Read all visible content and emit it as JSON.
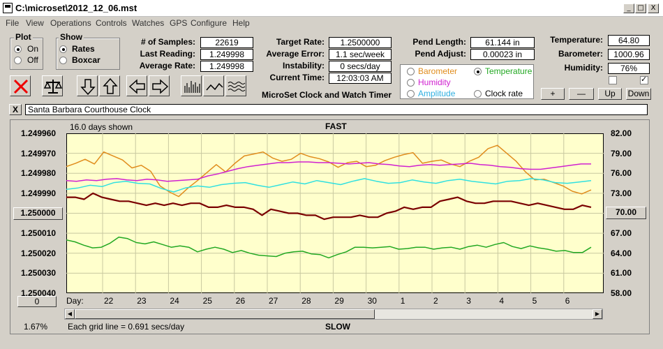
{
  "window": {
    "title": "C:\\microset\\2012_12_06.mst",
    "min": "_",
    "max": "□",
    "close": "X"
  },
  "menu": [
    "File",
    "View",
    "Operations",
    "Controls",
    "Watches",
    "GPS",
    "Configure",
    "Help"
  ],
  "plot_group": {
    "title": "Plot",
    "on": "On",
    "off": "Off",
    "selected": "On"
  },
  "show_group": {
    "title": "Show",
    "rates": "Rates",
    "boxcar": "Boxcar",
    "selected": "Rates"
  },
  "stats": {
    "samples_label": "# of Samples:",
    "samples": "22619",
    "last_reading_label": "Last Reading:",
    "last_reading": "1.249998",
    "average_rate_label": "Average Rate:",
    "average_rate": "1.249998",
    "target_rate_label": "Target Rate:",
    "target_rate": "1.2500000",
    "average_error_label": "Average Error:",
    "average_error": "1.1 sec/week",
    "instability_label": "Instability:",
    "instability": "0 secs/day",
    "current_time_label": "Current Time:",
    "current_time": "12:03:03 AM",
    "pend_length_label": "Pend Length:",
    "pend_length": "61.144 in",
    "pend_adjust_label": "Pend Adjust:",
    "pend_adjust": "0.00023 in",
    "temperature_label": "Temperature:",
    "temperature": "64.80",
    "barometer_label": "Barometer:",
    "barometer": "1000.96",
    "humidity_label": "Humidity:",
    "humidity": "76%"
  },
  "app_caption": "MicroSet Clock and Watch Timer",
  "sensor_options": {
    "barometer": "Barometer",
    "temperature": "Temperature",
    "humidity": "Humidity",
    "amplitude": "Amplitude",
    "clock_rate": "Clock rate",
    "selected": "Temperature"
  },
  "sensor_buttons": {
    "plus": "+",
    "minus": "—",
    "up": "Up",
    "down": "Down"
  },
  "clock_name": "Santa Barbara Courthouse Clock",
  "close_clock_label": "X",
  "chart_header": {
    "days_shown": "16.0 days shown",
    "fast": "FAST",
    "slow": "SLOW",
    "footer": "Each grid line = 0.691 secs/day",
    "percent": "1.67%",
    "day_label": "Day:"
  },
  "left_value_box": "1.250000",
  "right_value_box": "70.00",
  "left_zero_box": "0",
  "colors": {
    "background": "#ffffcc",
    "rate": "#7a0000",
    "temperature": "#22a822",
    "barometer": "#e08c1c",
    "humidity": "#d020d0",
    "amplitude": "#30e0e0"
  },
  "chart_data": {
    "type": "line",
    "left_axis": {
      "ticks": [
        "1.249960",
        "1.249970",
        "1.249980",
        "1.249990",
        "1.250000",
        "1.250010",
        "1.250020",
        "1.250030",
        "1.250040"
      ],
      "range": [
        1.24996,
        1.25004
      ],
      "inverted": true
    },
    "right_axis": {
      "ticks": [
        "82.00",
        "79.00",
        "76.00",
        "73.00",
        "70.00",
        "67.00",
        "64.00",
        "61.00",
        "58.00"
      ],
      "range": [
        58,
        82
      ]
    },
    "x_ticks": [
      "22",
      "23",
      "24",
      "25",
      "26",
      "27",
      "28",
      "29",
      "30",
      "1",
      "2",
      "3",
      "4",
      "5",
      "6"
    ],
    "series": [
      {
        "name": "Clock rate",
        "color": "#7a0000",
        "axis": "left",
        "values": [
          1.249992,
          1.249992,
          1.249993,
          1.24999,
          1.249992,
          1.249993,
          1.249994,
          1.249994,
          1.249995,
          1.249996,
          1.249995,
          1.249996,
          1.249995,
          1.249996,
          1.249995,
          1.249995,
          1.249997,
          1.249997,
          1.249996,
          1.249997,
          1.249997,
          1.249998,
          1.250001,
          1.249998,
          1.249999,
          1.25,
          1.25,
          1.250001,
          1.250001,
          1.250003,
          1.250002,
          1.250002,
          1.250002,
          1.250001,
          1.250002,
          1.250002,
          1.25,
          1.249999,
          1.249997,
          1.249998,
          1.249997,
          1.249997,
          1.249994,
          1.249993,
          1.249992,
          1.249994,
          1.249995,
          1.249995,
          1.249994,
          1.249994,
          1.249994,
          1.249995,
          1.249996,
          1.249995,
          1.249996,
          1.249997,
          1.249998,
          1.249998,
          1.249996,
          1.249997
        ]
      },
      {
        "name": "Temperature",
        "color": "#22a822",
        "axis": "right",
        "values": [
          66.0,
          65.7,
          65.2,
          64.8,
          64.9,
          65.5,
          66.4,
          66.2,
          65.6,
          65.4,
          65.7,
          65.3,
          64.9,
          65.1,
          64.9,
          64.2,
          64.6,
          64.9,
          64.6,
          64.1,
          64.4,
          64.0,
          63.7,
          63.6,
          63.5,
          64.0,
          64.2,
          64.3,
          63.9,
          63.8,
          63.3,
          63.8,
          64.2,
          64.9,
          64.9,
          64.8,
          64.9,
          65.0,
          64.6,
          64.7,
          64.9,
          64.9,
          64.6,
          64.8,
          64.9,
          64.6,
          65.0,
          65.2,
          64.9,
          65.3,
          65.6,
          65.0,
          64.7,
          65.1,
          64.8,
          64.6,
          64.3,
          64.4,
          64.1,
          64.1,
          64.9
        ]
      },
      {
        "name": "Barometer",
        "color": "#e08c1c",
        "axis": "right",
        "values": [
          77.0,
          77.5,
          78.1,
          77.4,
          79.2,
          78.6,
          78.0,
          76.8,
          77.2,
          76.3,
          74.1,
          73.2,
          72.5,
          73.8,
          74.9,
          76.1,
          77.3,
          76.2,
          77.5,
          78.6,
          78.9,
          79.2,
          78.3,
          77.8,
          78.1,
          79.0,
          78.5,
          78.2,
          77.7,
          76.9,
          77.6,
          77.8,
          77.0,
          77.2,
          77.9,
          78.4,
          78.8,
          79.1,
          77.5,
          77.8,
          78.0,
          77.4,
          77.0,
          77.8,
          78.4,
          79.7,
          80.2,
          79.0,
          77.8,
          76.2,
          75.0,
          75.1,
          74.6,
          74.1,
          73.3,
          72.9,
          73.5
        ]
      },
      {
        "name": "Humidity",
        "color": "#d020d0",
        "axis": "right",
        "values": [
          74.9,
          74.8,
          75.0,
          74.9,
          75.1,
          75.2,
          75.0,
          74.9,
          75.1,
          75.0,
          74.8,
          74.9,
          75.0,
          75.1,
          75.6,
          75.9,
          76.3,
          76.7,
          77.0,
          77.2,
          77.4,
          77.6,
          77.6,
          77.7,
          77.7,
          77.6,
          77.6,
          77.5,
          77.4,
          77.5,
          77.6,
          77.4,
          77.3,
          77.1,
          77.0,
          77.2,
          77.3,
          77.2,
          77.3,
          77.4,
          77.5,
          77.3,
          77.2,
          77.0,
          76.9,
          76.7,
          76.6,
          76.6,
          76.8,
          77.0,
          77.2,
          77.4,
          77.4
        ]
      },
      {
        "name": "Amplitude",
        "color": "#30e0e0",
        "axis": "right",
        "values": [
          73.6,
          73.8,
          74.2,
          74.0,
          74.6,
          74.8,
          74.5,
          74.4,
          73.7,
          73.2,
          73.8,
          74.1,
          73.9,
          74.3,
          74.5,
          74.6,
          74.2,
          73.9,
          74.3,
          74.7,
          74.4,
          74.9,
          74.6,
          74.3,
          74.8,
          75.2,
          74.8,
          74.5,
          74.6,
          75.0,
          74.7,
          74.5,
          74.9,
          75.1,
          74.8,
          74.6,
          74.4,
          74.8,
          74.9,
          75.2,
          75.0,
          74.6,
          74.5,
          74.7,
          74.9
        ]
      }
    ]
  }
}
